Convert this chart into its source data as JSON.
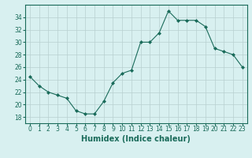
{
  "x": [
    0,
    1,
    2,
    3,
    4,
    5,
    6,
    7,
    8,
    9,
    10,
    11,
    12,
    13,
    14,
    15,
    16,
    17,
    18,
    19,
    20,
    21,
    22,
    23
  ],
  "y": [
    24.5,
    23.0,
    22.0,
    21.5,
    21.0,
    19.0,
    18.5,
    18.5,
    20.5,
    23.5,
    25.0,
    25.5,
    30.0,
    30.0,
    31.5,
    35.0,
    33.5,
    33.5,
    33.5,
    32.5,
    29.0,
    28.5,
    28.0,
    26.0
  ],
  "line_color": "#1a6b5a",
  "marker": "D",
  "marker_size": 2,
  "bg_color": "#d8f0f0",
  "grid_color": "#b8d0d0",
  "tick_color": "#1a6b5a",
  "xlabel": "Humidex (Indice chaleur)",
  "xlabel_fontsize": 7,
  "yticks": [
    18,
    20,
    22,
    24,
    26,
    28,
    30,
    32,
    34
  ],
  "xticks": [
    0,
    1,
    2,
    3,
    4,
    5,
    6,
    7,
    8,
    9,
    10,
    11,
    12,
    13,
    14,
    15,
    16,
    17,
    18,
    19,
    20,
    21,
    22,
    23
  ],
  "ylim": [
    17,
    36
  ],
  "xlim": [
    -0.5,
    23.5
  ]
}
